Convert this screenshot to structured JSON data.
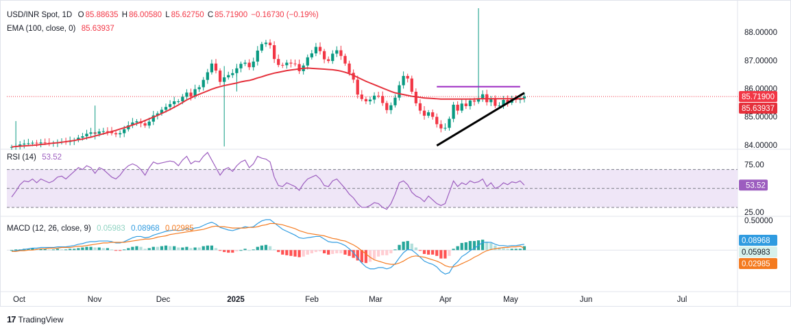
{
  "header": {
    "symbol": "USD/INR Spot, 1D",
    "open_label": "O",
    "open": "85.88635",
    "high_label": "H",
    "high": "86.00580",
    "low_label": "L",
    "low": "85.62750",
    "close_label": "C",
    "close": "85.71900",
    "change": "−0.16730 (−0.19%)"
  },
  "ema_legend": {
    "label": "EMA (100, close, 0)",
    "value": "85.63937"
  },
  "rsi_legend": {
    "label": "RSI (14)",
    "value": "53.52"
  },
  "macd_legend": {
    "label": "MACD (12, 26, close, 9)",
    "hist": "0.05983",
    "macd": "0.08968",
    "signal": "0.02985"
  },
  "footer": {
    "brand": "TradingView"
  },
  "colors": {
    "up": "#089981",
    "down": "#f23645",
    "ema": "#e5303b",
    "rsi": "#9c5dbf",
    "macd": "#2f9be0",
    "signal": "#f47a1f",
    "trend": "#000000",
    "resistance": "#9b27c2"
  },
  "chart_data": [
    {
      "type": "candlestick",
      "title": "USD/INR Spot, 1D",
      "x_ticks": [
        "Oct",
        "Nov",
        "Dec",
        "2025",
        "Feb",
        "Mar",
        "Apr",
        "May",
        "Jun",
        "Jul"
      ],
      "y_ticks": [
        84.0,
        85.0,
        86.0,
        87.0,
        88.0
      ],
      "y_tick_labels": [
        "84.00000",
        "85.00000",
        "86.00000",
        "87.00000",
        "88.00000"
      ],
      "ylim": [
        83.9,
        88.9
      ],
      "last_price": 85.719,
      "ema_value": 85.63937,
      "price_labels": [
        "85.71900",
        "85.63937"
      ],
      "closes": [
        83.93,
        83.96,
        84.02,
        84.05,
        84.06,
        84.08,
        84.06,
        84.09,
        84.08,
        84.06,
        84.07,
        84.1,
        84.12,
        84.11,
        84.14,
        84.18,
        84.26,
        84.31,
        84.4,
        84.45,
        84.4,
        84.48,
        84.49,
        84.48,
        84.42,
        84.38,
        84.42,
        84.56,
        84.7,
        84.8,
        84.84,
        84.77,
        84.69,
        84.83,
        85.05,
        85.12,
        85.25,
        85.35,
        85.45,
        85.55,
        85.55,
        85.71,
        85.86,
        85.72,
        85.98,
        86.05,
        86.31,
        86.58,
        86.89,
        86.64,
        86.24,
        86.4,
        86.48,
        86.55,
        86.72,
        86.88,
        86.92,
        86.76,
        86.96,
        87.35,
        87.58,
        87.63,
        87.54,
        87.05,
        86.84,
        86.83,
        86.92,
        86.89,
        86.87,
        86.62,
        86.82,
        87.11,
        87.25,
        87.48,
        87.33,
        87.04,
        86.98,
        87.24,
        87.36,
        87.16,
        86.89,
        86.56,
        86.32,
        85.79,
        85.63,
        85.55,
        85.61,
        85.75,
        85.74,
        85.49,
        85.24,
        85.41,
        85.68,
        86.12,
        86.45,
        86.36,
        85.89,
        85.48,
        85.22,
        85.04,
        85.16,
        85.0,
        84.74,
        84.59,
        84.61,
        84.93,
        85.43,
        85.22,
        85.47,
        85.38,
        85.58,
        85.54,
        85.63,
        85.8,
        85.52,
        85.66,
        85.39,
        85.4,
        85.6,
        85.5,
        85.67,
        85.6,
        85.65,
        85.72
      ],
      "ema100": [
        83.93,
        83.95,
        83.96,
        83.97,
        83.98,
        83.99,
        84.0,
        84.02,
        84.03,
        84.05,
        84.07,
        84.08,
        84.1,
        84.12,
        84.14,
        84.16,
        84.19,
        84.21,
        84.25,
        84.28,
        84.32,
        84.36,
        84.4,
        84.44,
        84.48,
        84.52,
        84.57,
        84.61,
        84.66,
        84.71,
        84.76,
        84.81,
        84.87,
        84.93,
        84.99,
        85.05,
        85.12,
        85.19,
        85.26,
        85.34,
        85.42,
        85.51,
        85.6,
        85.67,
        85.74,
        85.8,
        85.86,
        85.92,
        85.98,
        86.03,
        86.07,
        86.11,
        86.14,
        86.17,
        86.2,
        86.24,
        86.27,
        86.29,
        86.33,
        86.38,
        86.42,
        86.47,
        86.51,
        86.55,
        86.58,
        86.61,
        86.64,
        86.66,
        86.68,
        86.7,
        86.72,
        86.73,
        86.72,
        86.71,
        86.7,
        86.69,
        86.68,
        86.67,
        86.65,
        86.62,
        86.58,
        86.53,
        86.47,
        86.4,
        86.33,
        86.26,
        86.2,
        86.14,
        86.08,
        86.02,
        85.96,
        85.9,
        85.85,
        85.82,
        85.79,
        85.76,
        85.73,
        85.71,
        85.69,
        85.67,
        85.66,
        85.65,
        85.64,
        85.63,
        85.63,
        85.63,
        85.63,
        85.63,
        85.63,
        85.63,
        85.63,
        85.63,
        85.64,
        85.64,
        85.64,
        85.64,
        85.64,
        85.64,
        85.64,
        85.64,
        85.64,
        85.64,
        85.64,
        85.64
      ],
      "annotations": {
        "resistance": {
          "y": 86.07
        },
        "trendline": {
          "from": [
            83.98
          ],
          "to": [
            85.85
          ]
        }
      }
    },
    {
      "type": "line",
      "title": "RSI (14)",
      "y_ticks": [
        25.0,
        75.0
      ],
      "y_tick_labels": [
        "25.00",
        "75.00"
      ],
      "band": [
        30,
        70
      ],
      "ylim": [
        22,
        90
      ],
      "last_value": 53.52,
      "values": [
        41,
        47,
        54,
        58,
        57,
        60,
        56,
        60,
        58,
        56,
        58,
        62,
        63,
        60,
        64,
        68,
        72,
        70,
        74,
        72,
        66,
        72,
        70,
        66,
        62,
        60,
        64,
        70,
        74,
        76,
        74,
        70,
        64,
        72,
        78,
        76,
        77,
        78,
        79,
        78,
        74,
        80,
        84,
        76,
        79,
        78,
        84,
        88,
        80,
        72,
        64,
        70,
        72,
        68,
        74,
        78,
        80,
        72,
        76,
        84,
        82,
        81,
        78,
        62,
        53,
        52,
        56,
        54,
        52,
        48,
        55,
        60,
        62,
        64,
        60,
        53,
        52,
        58,
        60,
        55,
        50,
        44,
        40,
        34,
        30,
        30,
        32,
        35,
        34,
        30,
        28,
        34,
        44,
        56,
        58,
        54,
        46,
        42,
        40,
        36,
        42,
        38,
        34,
        32,
        34,
        46,
        58,
        52,
        56,
        54,
        58,
        56,
        57,
        60,
        52,
        56,
        50,
        52,
        56,
        54,
        57,
        56,
        58,
        53.52
      ]
    },
    {
      "type": "bar",
      "title": "MACD (12, 26, close, 9)",
      "y_ticks": [
        0.5
      ],
      "y_tick_labels": [
        "0.50000"
      ],
      "ylim": [
        -0.62,
        0.5
      ],
      "macd_last": 0.08968,
      "signal_last": 0.02985,
      "histogram_last": 0.05983,
      "macd": [
        -0.02,
        -0.01,
        0.0,
        0.01,
        0.02,
        0.03,
        0.03,
        0.04,
        0.04,
        0.04,
        0.04,
        0.05,
        0.05,
        0.05,
        0.06,
        0.07,
        0.09,
        0.1,
        0.12,
        0.13,
        0.13,
        0.14,
        0.14,
        0.14,
        0.13,
        0.11,
        0.11,
        0.13,
        0.16,
        0.19,
        0.21,
        0.21,
        0.19,
        0.2,
        0.23,
        0.25,
        0.27,
        0.29,
        0.3,
        0.31,
        0.3,
        0.31,
        0.33,
        0.32,
        0.34,
        0.35,
        0.38,
        0.41,
        0.43,
        0.4,
        0.35,
        0.33,
        0.31,
        0.3,
        0.32,
        0.34,
        0.36,
        0.35,
        0.36,
        0.41,
        0.45,
        0.47,
        0.47,
        0.42,
        0.37,
        0.32,
        0.29,
        0.26,
        0.23,
        0.19,
        0.18,
        0.19,
        0.2,
        0.21,
        0.21,
        0.17,
        0.13,
        0.12,
        0.12,
        0.1,
        0.07,
        0.02,
        -0.04,
        -0.12,
        -0.2,
        -0.26,
        -0.29,
        -0.29,
        -0.27,
        -0.27,
        -0.29,
        -0.27,
        -0.21,
        -0.12,
        -0.04,
        0.01,
        0.0,
        -0.05,
        -0.11,
        -0.17,
        -0.2,
        -0.22,
        -0.26,
        -0.33,
        -0.37,
        -0.35,
        -0.24,
        -0.18,
        -0.1,
        -0.06,
        -0.01,
        0.03,
        0.07,
        0.12,
        0.12,
        0.12,
        0.09,
        0.07,
        0.07,
        0.06,
        0.07,
        0.07,
        0.08,
        0.09
      ],
      "signal": [
        -0.02,
        -0.02,
        -0.01,
        -0.01,
        0.0,
        0.0,
        0.01,
        0.02,
        0.02,
        0.03,
        0.03,
        0.03,
        0.04,
        0.04,
        0.04,
        0.05,
        0.06,
        0.06,
        0.07,
        0.08,
        0.09,
        0.1,
        0.11,
        0.11,
        0.12,
        0.12,
        0.12,
        0.12,
        0.13,
        0.14,
        0.15,
        0.16,
        0.17,
        0.17,
        0.18,
        0.2,
        0.21,
        0.22,
        0.24,
        0.25,
        0.26,
        0.27,
        0.28,
        0.29,
        0.3,
        0.31,
        0.32,
        0.34,
        0.36,
        0.37,
        0.36,
        0.36,
        0.35,
        0.34,
        0.34,
        0.34,
        0.34,
        0.35,
        0.35,
        0.36,
        0.38,
        0.39,
        0.41,
        0.41,
        0.4,
        0.39,
        0.37,
        0.35,
        0.33,
        0.3,
        0.28,
        0.26,
        0.25,
        0.24,
        0.23,
        0.22,
        0.2,
        0.18,
        0.17,
        0.15,
        0.14,
        0.11,
        0.08,
        0.04,
        -0.01,
        -0.06,
        -0.11,
        -0.15,
        -0.17,
        -0.19,
        -0.21,
        -0.22,
        -0.22,
        -0.2,
        -0.17,
        -0.13,
        -0.1,
        -0.09,
        -0.1,
        -0.11,
        -0.13,
        -0.15,
        -0.17,
        -0.2,
        -0.24,
        -0.26,
        -0.26,
        -0.24,
        -0.21,
        -0.18,
        -0.15,
        -0.11,
        -0.08,
        -0.04,
        -0.01,
        0.01,
        0.02,
        0.03,
        0.04,
        0.04,
        0.05,
        0.05,
        0.06,
        0.03
      ]
    }
  ]
}
